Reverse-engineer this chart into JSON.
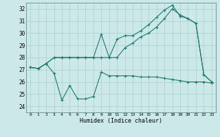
{
  "xlabel": "Humidex (Indice chaleur)",
  "background_color": "#cce8e8",
  "grid_color": "#aacece",
  "line_color": "#1a7a6e",
  "xlim": [
    -0.5,
    23.5
  ],
  "ylim": [
    23.5,
    32.5
  ],
  "xticks": [
    0,
    1,
    2,
    3,
    4,
    5,
    6,
    7,
    8,
    9,
    10,
    11,
    12,
    13,
    14,
    15,
    16,
    17,
    18,
    19,
    20,
    21,
    22,
    23
  ],
  "yticks": [
    24,
    25,
    26,
    27,
    28,
    29,
    30,
    31,
    32
  ],
  "series1": [
    27.2,
    27.1,
    27.5,
    28.0,
    28.0,
    28.0,
    28.0,
    28.0,
    28.0,
    29.9,
    28.0,
    29.5,
    29.8,
    29.8,
    30.2,
    30.7,
    31.3,
    31.9,
    32.3,
    31.4,
    31.2,
    30.8,
    26.6,
    26.0
  ],
  "series2": [
    27.2,
    27.1,
    27.5,
    28.0,
    28.0,
    28.0,
    28.0,
    28.0,
    28.0,
    28.0,
    28.0,
    28.0,
    28.8,
    29.2,
    29.7,
    30.0,
    30.5,
    31.2,
    32.0,
    31.5,
    31.2,
    30.8,
    26.6,
    26.0
  ],
  "series3": [
    27.2,
    27.1,
    27.5,
    26.7,
    24.5,
    25.7,
    24.6,
    24.6,
    24.8,
    26.8,
    26.5,
    26.5,
    26.5,
    26.5,
    26.4,
    26.4,
    26.4,
    26.3,
    26.2,
    26.1,
    26.0,
    26.0,
    26.0,
    25.9
  ]
}
